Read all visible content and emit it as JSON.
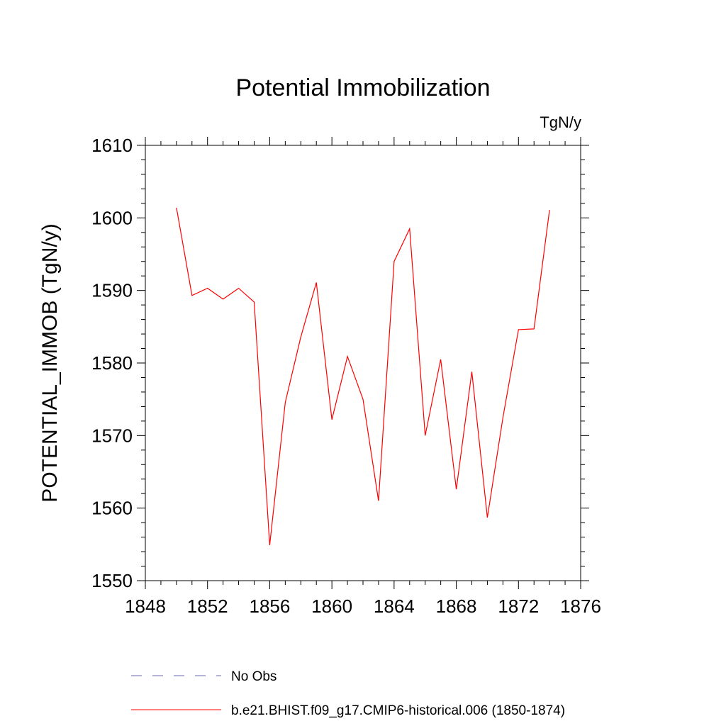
{
  "chart_data": {
    "type": "line",
    "title": "Potential Immobilization",
    "units_label": "TgN/y",
    "xlabel": "",
    "ylabel": "POTENTIAL_IMMOB  (TgN/y)",
    "xlim": [
      1848,
      1876
    ],
    "ylim": [
      1550,
      1610
    ],
    "xticks": [
      1848,
      1852,
      1856,
      1860,
      1864,
      1868,
      1872,
      1876
    ],
    "yticks": [
      1550,
      1560,
      1570,
      1580,
      1590,
      1600,
      1610
    ],
    "xtick_labels": [
      "1848",
      "1852",
      "1856",
      "1860",
      "1864",
      "1868",
      "1872",
      "1876"
    ],
    "ytick_labels": [
      "1550",
      "1560",
      "1570",
      "1580",
      "1590",
      "1600",
      "1610"
    ],
    "x": [
      1850,
      1851,
      1852,
      1853,
      1854,
      1855,
      1856,
      1857,
      1858,
      1859,
      1860,
      1861,
      1862,
      1863,
      1864,
      1865,
      1866,
      1867,
      1868,
      1869,
      1870,
      1871,
      1872,
      1873,
      1874
    ],
    "series": [
      {
        "name": "b.e21.BHIST.f09_g17.CMIP6-historical.006 (1850-1874)",
        "color": "#ff0000",
        "style": "solid",
        "values": [
          1601.4,
          1589.3,
          1590.3,
          1588.8,
          1590.3,
          1588.4,
          1554.9,
          1574.6,
          1583.6,
          1591.1,
          1572.2,
          1580.9,
          1575.0,
          1561.0,
          1594.0,
          1598.5,
          1570.0,
          1580.5,
          1562.6,
          1578.8,
          1558.7,
          1572.5,
          1584.6,
          1584.7,
          1601.1
        ]
      }
    ],
    "legend": [
      {
        "label": "No Obs",
        "color": "#6a6ab0",
        "style": "dashed"
      },
      {
        "label": "b.e21.BHIST.f09_g17.CMIP6-historical.006 (1850-1874)",
        "color": "#ff0000",
        "style": "solid"
      }
    ],
    "legend_position": "bottom",
    "grid": false
  }
}
